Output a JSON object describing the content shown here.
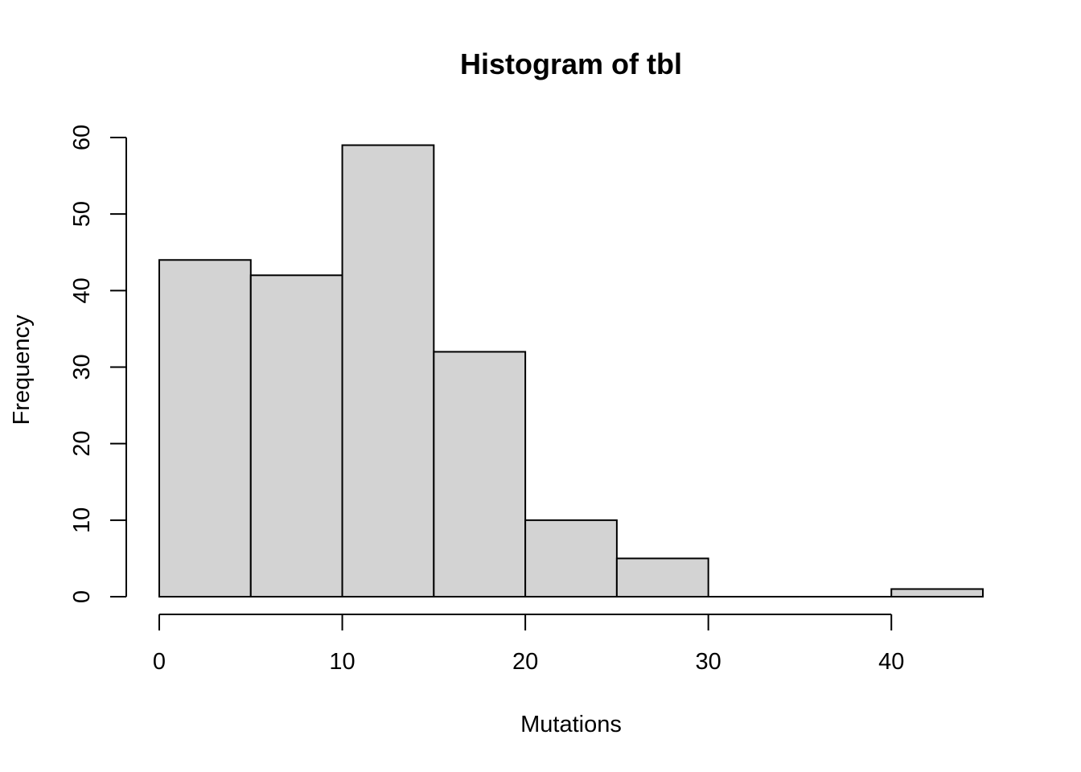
{
  "chart_data": {
    "type": "bar",
    "title": "Histogram of tbl",
    "xlabel": "Mutations",
    "ylabel": "Frequency",
    "bins": [
      {
        "from": 0,
        "to": 5,
        "count": 44
      },
      {
        "from": 5,
        "to": 10,
        "count": 42
      },
      {
        "from": 10,
        "to": 15,
        "count": 59
      },
      {
        "from": 15,
        "to": 20,
        "count": 32
      },
      {
        "from": 20,
        "to": 25,
        "count": 10
      },
      {
        "from": 25,
        "to": 30,
        "count": 5
      },
      {
        "from": 30,
        "to": 35,
        "count": 0
      },
      {
        "from": 35,
        "to": 40,
        "count": 0
      },
      {
        "from": 40,
        "to": 45,
        "count": 1
      }
    ],
    "x_ticks": [
      "0",
      "10",
      "20",
      "30",
      "40"
    ],
    "y_ticks": [
      "0",
      "10",
      "20",
      "30",
      "40",
      "50",
      "60"
    ],
    "xlim": [
      0,
      45
    ],
    "ylim": [
      0,
      60
    ],
    "grid": false,
    "bar_color": "#d3d3d3",
    "edge_color": "#000000"
  }
}
